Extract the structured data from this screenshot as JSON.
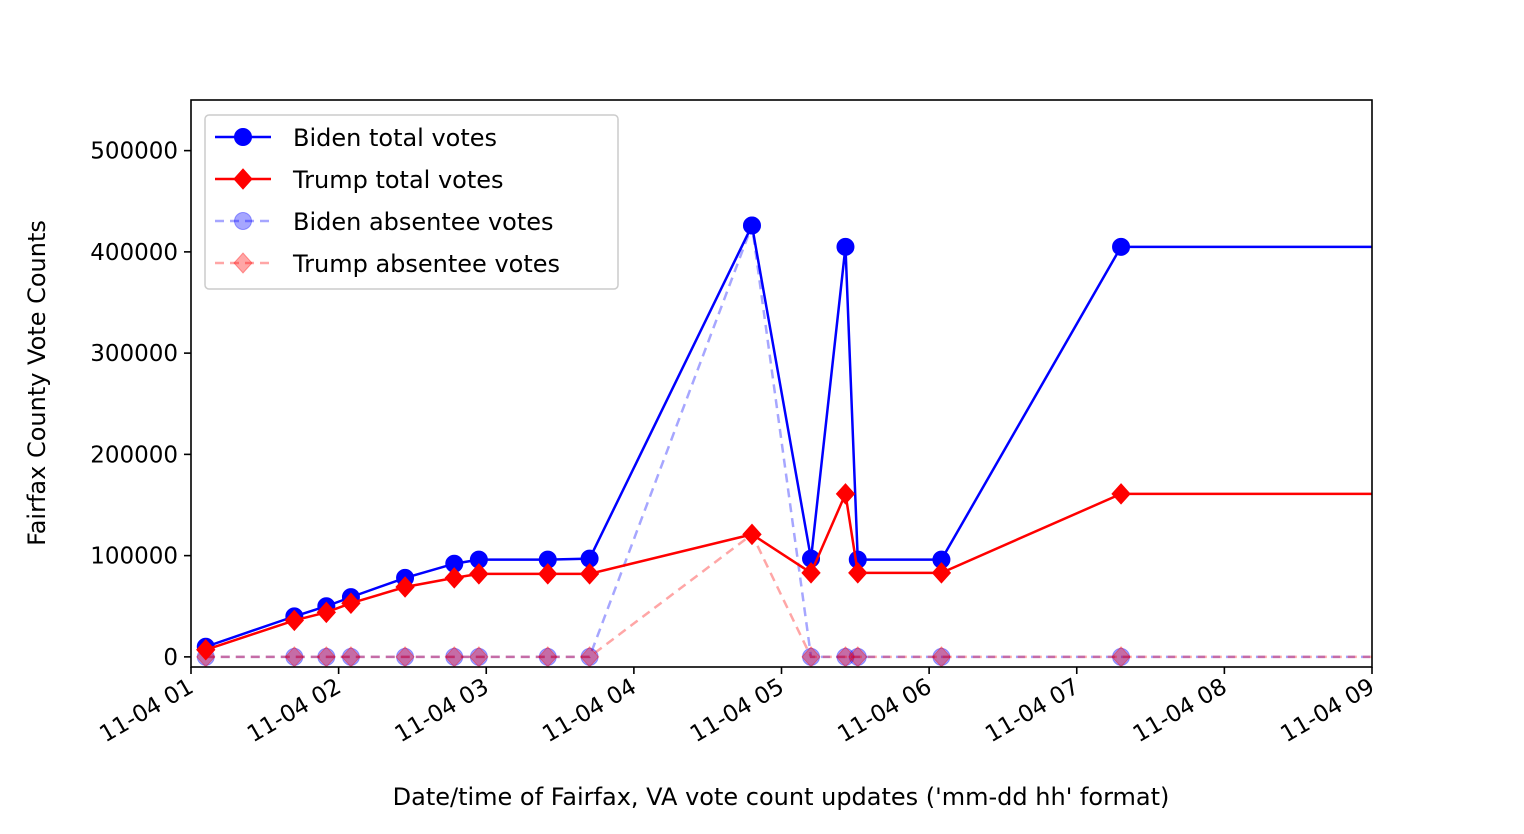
{
  "chart_data": {
    "type": "line",
    "xlabel": "Date/time of Fairfax, VA vote count updates ('mm-dd hh' format)",
    "ylabel": "Fairfax County Vote Counts",
    "x_tick_labels": [
      "11-04 01",
      "11-04 02",
      "11-04 03",
      "11-04 04",
      "11-04 05",
      "11-04 06",
      "11-04 07",
      "11-04 08",
      "11-04 09"
    ],
    "y_ticks": [
      0,
      100000,
      200000,
      300000,
      400000,
      500000
    ],
    "xlim": [
      "11-04 01:00",
      "11-04 09:00"
    ],
    "ylim": [
      -10000,
      550000
    ],
    "grid": false,
    "legend": "upper-left",
    "x": [
      "11-04 01:06",
      "11-04 01:42",
      "11-04 01:55",
      "11-04 02:05",
      "11-04 02:27",
      "11-04 02:47",
      "11-04 02:57",
      "11-04 03:25",
      "11-04 03:42",
      "11-04 04:48",
      "11-04 05:12",
      "11-04 05:26",
      "11-04 05:31",
      "11-04 06:05",
      "11-04 07:18",
      "11-04 09:00"
    ],
    "series": [
      {
        "name": "Biden total votes",
        "color": "#0000ff",
        "style": "solid",
        "marker": "circle",
        "values": [
          10000,
          40000,
          50000,
          59000,
          78000,
          92000,
          96000,
          96000,
          97000,
          426000,
          97000,
          405000,
          96000,
          96000,
          405000,
          405000
        ]
      },
      {
        "name": "Trump total votes",
        "color": "#ff0000",
        "style": "solid",
        "marker": "diamond",
        "values": [
          7000,
          36000,
          44000,
          53000,
          69000,
          78000,
          82000,
          82000,
          82000,
          121000,
          83000,
          161000,
          83000,
          83000,
          161000,
          161000
        ]
      },
      {
        "name": "Biden absentee votes",
        "color": "#0000ff",
        "style": "dashed",
        "marker": "circle",
        "values": [
          0,
          0,
          0,
          0,
          0,
          0,
          0,
          0,
          0,
          426000,
          0,
          0,
          0,
          0,
          0,
          0
        ]
      },
      {
        "name": "Trump absentee votes",
        "color": "#ff0000",
        "style": "dashed",
        "marker": "diamond",
        "values": [
          0,
          0,
          0,
          0,
          0,
          0,
          0,
          0,
          0,
          121000,
          0,
          0,
          0,
          0,
          0,
          0
        ]
      }
    ]
  }
}
